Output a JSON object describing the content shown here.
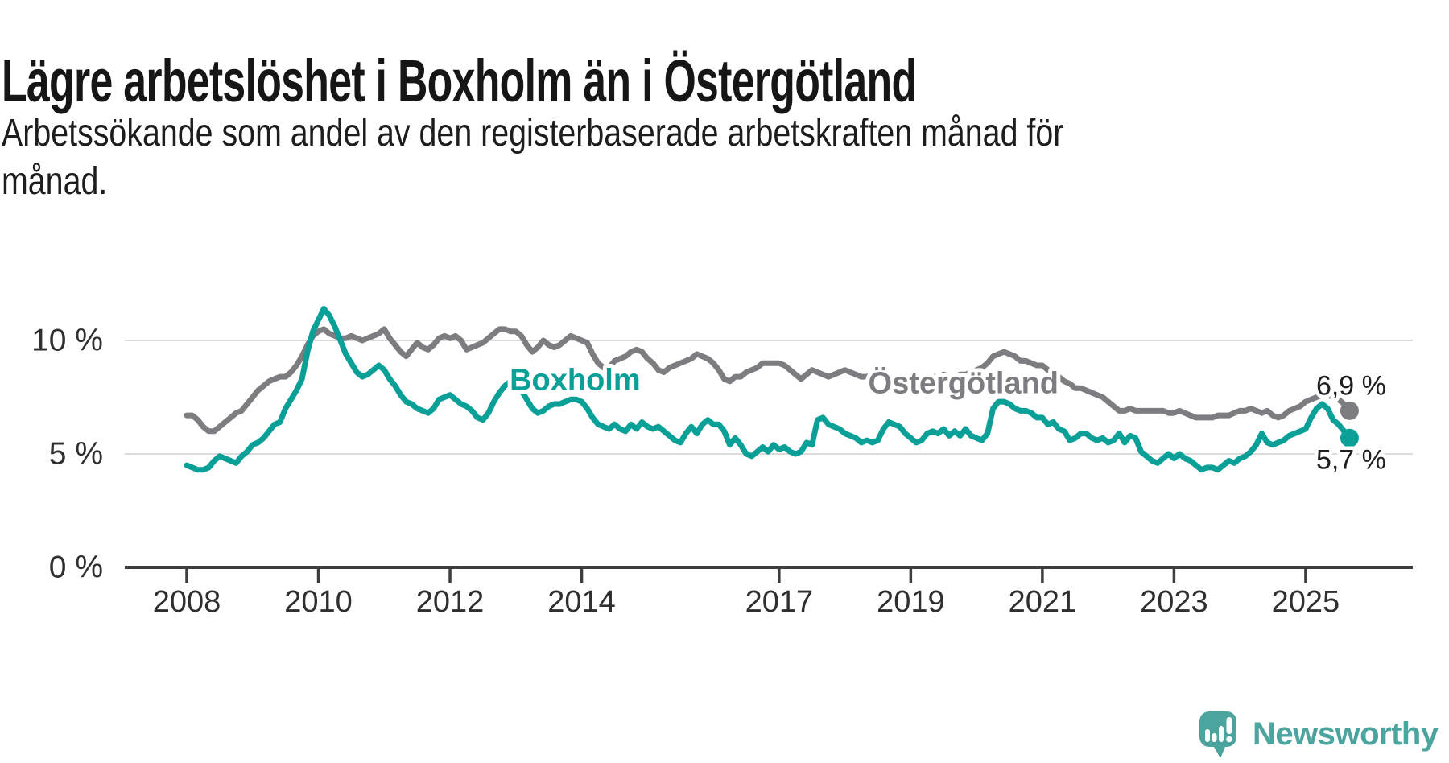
{
  "chart_data": {
    "type": "line",
    "title": "Lägre arbetslöshet i Boxholm än i Östergötland",
    "subtitle_lines": [
      "Arbetssökande som andel av den registerbaserade arbetskraften månad för",
      "månad."
    ],
    "unit": "%",
    "x_range": {
      "start": "2008-01",
      "end": "2025-09",
      "points_per_year": 12
    },
    "ylim": [
      0,
      11.5
    ],
    "grid": true,
    "legend_position": "inline-labels",
    "yticks": [
      {
        "value": 10,
        "label": "10 %"
      },
      {
        "value": 5,
        "label": "5 %"
      },
      {
        "value": 0,
        "label": "0 %"
      }
    ],
    "xtick_years": [
      2008,
      2010,
      2012,
      2014,
      2017,
      2019,
      2021,
      2023,
      2025
    ],
    "xtick_labels": [
      "2008",
      "2010",
      "2012",
      "2014",
      "2017",
      "2019",
      "2021",
      "2023",
      "2025"
    ],
    "series": [
      {
        "name": "Boxholm",
        "color": "#0A9F97",
        "end_label": "5,7 %",
        "end_value": 5.7,
        "inline_label_anchor": {
          "year": 2013.9,
          "value": 8.25
        },
        "values": [
          4.5,
          4.4,
          4.3,
          4.3,
          4.4,
          4.7,
          4.9,
          4.8,
          4.7,
          4.6,
          4.9,
          5.1,
          5.4,
          5.5,
          5.7,
          6.0,
          6.3,
          6.4,
          7.0,
          7.4,
          7.8,
          8.3,
          9.5,
          10.4,
          10.9,
          11.4,
          11.1,
          10.6,
          10.0,
          9.4,
          9.0,
          8.6,
          8.4,
          8.5,
          8.7,
          8.9,
          8.7,
          8.3,
          8.0,
          7.6,
          7.3,
          7.2,
          7.0,
          6.9,
          6.8,
          7.0,
          7.4,
          7.5,
          7.6,
          7.4,
          7.2,
          7.1,
          6.9,
          6.6,
          6.5,
          6.8,
          7.3,
          7.7,
          8.0,
          8.2,
          8.0,
          7.8,
          7.4,
          7.0,
          6.8,
          6.9,
          7.1,
          7.2,
          7.2,
          7.3,
          7.4,
          7.4,
          7.3,
          7.0,
          6.6,
          6.3,
          6.2,
          6.1,
          6.3,
          6.1,
          6.0,
          6.3,
          6.1,
          6.4,
          6.2,
          6.1,
          6.2,
          6.0,
          5.8,
          5.6,
          5.5,
          5.9,
          6.2,
          5.9,
          6.3,
          6.5,
          6.3,
          6.3,
          6.0,
          5.4,
          5.7,
          5.4,
          5.0,
          4.9,
          5.1,
          5.3,
          5.1,
          5.4,
          5.2,
          5.3,
          5.1,
          5.0,
          5.1,
          5.5,
          5.4,
          6.5,
          6.6,
          6.3,
          6.2,
          6.1,
          5.9,
          5.8,
          5.7,
          5.5,
          5.6,
          5.5,
          5.6,
          6.1,
          6.4,
          6.3,
          6.2,
          5.9,
          5.7,
          5.5,
          5.6,
          5.9,
          6.0,
          5.9,
          6.1,
          5.8,
          6.0,
          5.8,
          6.1,
          5.8,
          5.7,
          5.6,
          5.9,
          7.0,
          7.3,
          7.3,
          7.2,
          7.0,
          6.9,
          6.9,
          6.8,
          6.6,
          6.6,
          6.3,
          6.4,
          6.1,
          6.0,
          5.6,
          5.7,
          5.9,
          5.9,
          5.7,
          5.6,
          5.7,
          5.5,
          5.6,
          5.9,
          5.5,
          5.8,
          5.7,
          5.1,
          4.9,
          4.7,
          4.6,
          4.8,
          5.0,
          4.8,
          5.0,
          4.8,
          4.7,
          4.5,
          4.3,
          4.4,
          4.4,
          4.3,
          4.5,
          4.7,
          4.6,
          4.8,
          4.9,
          5.1,
          5.4,
          5.9,
          5.5,
          5.4,
          5.5,
          5.6,
          5.8,
          5.9,
          6.0,
          6.1,
          6.6,
          7.0,
          7.2,
          7.0,
          6.5,
          6.3,
          6.0,
          5.7
        ]
      },
      {
        "name": "Östergötland",
        "color": "#7D7D81",
        "end_label": "6,9 %",
        "end_value": 6.9,
        "inline_label_anchor": {
          "year": 2019.8,
          "value": 8.1
        },
        "values": [
          6.7,
          6.7,
          6.5,
          6.2,
          6.0,
          6.0,
          6.2,
          6.4,
          6.6,
          6.8,
          6.9,
          7.2,
          7.5,
          7.8,
          8.0,
          8.2,
          8.3,
          8.4,
          8.4,
          8.6,
          8.9,
          9.3,
          9.8,
          10.2,
          10.4,
          10.5,
          10.3,
          10.2,
          10.1,
          10.1,
          10.2,
          10.1,
          10.0,
          10.1,
          10.2,
          10.3,
          10.5,
          10.1,
          9.8,
          9.5,
          9.3,
          9.6,
          9.9,
          9.7,
          9.6,
          9.8,
          10.1,
          10.2,
          10.1,
          10.2,
          10.0,
          9.6,
          9.7,
          9.8,
          9.9,
          10.1,
          10.3,
          10.5,
          10.5,
          10.4,
          10.4,
          10.2,
          9.8,
          9.5,
          9.7,
          10.0,
          9.8,
          9.7,
          9.8,
          10.0,
          10.2,
          10.1,
          10.0,
          9.9,
          9.4,
          9.0,
          8.8,
          8.8,
          9.1,
          9.2,
          9.3,
          9.5,
          9.6,
          9.5,
          9.2,
          9.0,
          8.7,
          8.6,
          8.8,
          8.9,
          9.0,
          9.1,
          9.2,
          9.4,
          9.3,
          9.2,
          9.0,
          8.7,
          8.3,
          8.2,
          8.4,
          8.4,
          8.6,
          8.7,
          8.8,
          9.0,
          9.0,
          9.0,
          9.0,
          8.9,
          8.7,
          8.5,
          8.3,
          8.5,
          8.7,
          8.6,
          8.5,
          8.4,
          8.5,
          8.6,
          8.7,
          8.6,
          8.5,
          8.4,
          8.4,
          8.5,
          8.5,
          8.4,
          8.4,
          8.3,
          8.4,
          8.4,
          8.4,
          8.4,
          8.3,
          8.3,
          8.4,
          8.4,
          8.5,
          8.4,
          8.4,
          8.5,
          8.5,
          8.6,
          8.7,
          8.8,
          9.0,
          9.3,
          9.4,
          9.5,
          9.4,
          9.3,
          9.1,
          9.1,
          9.0,
          8.9,
          8.9,
          8.7,
          8.6,
          8.4,
          8.2,
          8.1,
          7.9,
          7.9,
          7.8,
          7.7,
          7.6,
          7.5,
          7.3,
          7.1,
          6.9,
          6.9,
          7.0,
          6.9,
          6.9,
          6.9,
          6.9,
          6.9,
          6.9,
          6.8,
          6.8,
          6.9,
          6.8,
          6.7,
          6.6,
          6.6,
          6.6,
          6.6,
          6.7,
          6.7,
          6.7,
          6.8,
          6.9,
          6.9,
          7.0,
          6.9,
          6.8,
          6.9,
          6.7,
          6.6,
          6.7,
          6.9,
          7.0,
          7.1,
          7.3,
          7.4,
          7.5,
          7.6,
          7.6,
          7.5,
          7.4,
          7.2,
          6.9
        ]
      }
    ]
  },
  "footer": {
    "brand": "Newsworthy",
    "brand_color": "#4BA49E"
  }
}
